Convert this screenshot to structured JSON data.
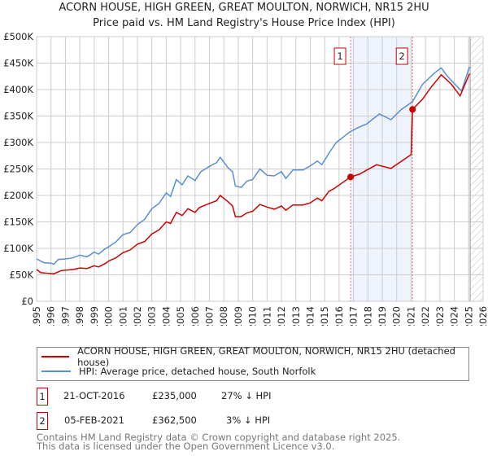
{
  "chart_data": {
    "type": "line",
    "title": "ACORN HOUSE, HIGH GREEN, GREAT MOULTON, NORWICH, NR15 2HU",
    "subtitle": "Price paid vs. HM Land Registry's House Price Index (HPI)",
    "xlabel": "",
    "ylabel": "",
    "xlim": [
      1995,
      2026
    ],
    "ylim": [
      0,
      500000
    ],
    "yticks": [
      {
        "v": 0,
        "label": "£0"
      },
      {
        "v": 50000,
        "label": "£50K"
      },
      {
        "v": 100000,
        "label": "£100K"
      },
      {
        "v": 150000,
        "label": "£150K"
      },
      {
        "v": 200000,
        "label": "£200K"
      },
      {
        "v": 250000,
        "label": "£250K"
      },
      {
        "v": 300000,
        "label": "£300K"
      },
      {
        "v": 350000,
        "label": "£350K"
      },
      {
        "v": 400000,
        "label": "£400K"
      },
      {
        "v": 450000,
        "label": "£450K"
      },
      {
        "v": 500000,
        "label": "£500K"
      }
    ],
    "xticks": [
      "1995",
      "1996",
      "1997",
      "1998",
      "1999",
      "2000",
      "2001",
      "2002",
      "2003",
      "2004",
      "2005",
      "2006",
      "2007",
      "2008",
      "2009",
      "2010",
      "2011",
      "2012",
      "2013",
      "2014",
      "2015",
      "2016",
      "2017",
      "2018",
      "2019",
      "2020",
      "2021",
      "2022",
      "2023",
      "2024",
      "2025",
      "2026"
    ],
    "grid": true,
    "shaded_range": [
      2016.8,
      2021.1
    ],
    "forecast_hatch_from": 2025.1,
    "series": [
      {
        "name": "ACORN HOUSE, HIGH GREEN, GREAT MOULTON, NORWICH, NR15 2HU (detached house)",
        "color": "#cc0000",
        "x": [
          1995,
          1995.3,
          1996.2,
          1996.7,
          1997.5,
          1998,
          1998.5,
          1999,
          1999.3,
          1999.8,
          2000,
          2000.5,
          2001,
          2001.5,
          2002,
          2002.5,
          2003,
          2003.5,
          2004,
          2004.3,
          2004.7,
          2005.1,
          2005.5,
          2006,
          2006.3,
          2007,
          2007.5,
          2007.75,
          2008.3,
          2008.6,
          2008.8,
          2009.2,
          2009.6,
          2010,
          2010.5,
          2011,
          2011.5,
          2012,
          2012.3,
          2012.8,
          2013.5,
          2014,
          2014.5,
          2014.8,
          2015.3,
          2015.6,
          2016.8,
          2017.4,
          2018.6,
          2019.6,
          2021.0,
          2021.1,
          2021.8,
          2022.4,
          2023.1,
          2023.8,
          2024.4,
          2025.05
        ],
        "y": [
          60,
          54,
          52,
          58,
          60,
          63,
          62,
          67,
          65,
          72,
          76,
          82,
          92,
          97,
          108,
          113,
          127,
          135,
          150,
          147,
          168,
          162,
          175,
          168,
          177,
          185,
          190,
          200,
          188,
          180,
          160,
          160,
          167,
          170,
          183,
          178,
          174,
          180,
          172,
          182,
          182,
          186,
          195,
          190,
          208,
          212,
          235,
          240,
          258,
          251,
          277,
          362.5,
          382,
          405,
          428,
          410,
          388,
          430
        ]
      },
      {
        "name": "HPI: Average price, detached house, South Norfolk",
        "color": "#5b8fd4",
        "x": [
          1995,
          1995.5,
          1996,
          1996.2,
          1996.5,
          1997,
          1997.5,
          1998,
          1998.5,
          1999,
          1999.3,
          1999.7,
          2000,
          2000.5,
          2001,
          2001.5,
          2002,
          2002.5,
          2003,
          2003.5,
          2004,
          2004.3,
          2004.7,
          2005.1,
          2005.5,
          2006,
          2006.4,
          2007,
          2007.5,
          2007.75,
          2008.3,
          2008.6,
          2008.8,
          2009.2,
          2009.6,
          2010,
          2010.5,
          2011,
          2011.5,
          2012,
          2012.3,
          2012.8,
          2013.5,
          2014,
          2014.5,
          2014.8,
          2015.3,
          2015.8,
          2016.75,
          2017.3,
          2017.9,
          2018.8,
          2019.6,
          2020.3,
          2021.1,
          2021.8,
          2022.6,
          2023.1,
          2023.5,
          2024.5,
          2025.05
        ],
        "y": [
          80,
          73,
          72,
          70,
          79,
          80,
          82,
          87,
          84,
          93,
          89,
          98,
          103,
          112,
          126,
          130,
          145,
          155,
          175,
          185,
          205,
          198,
          230,
          220,
          237,
          228,
          245,
          255,
          262,
          272,
          252,
          245,
          218,
          215,
          227,
          230,
          250,
          238,
          237,
          245,
          232,
          248,
          248,
          256,
          265,
          258,
          280,
          300,
          320,
          328,
          335,
          354,
          343,
          362,
          377,
          410,
          431,
          441,
          426,
          397,
          443
        ]
      }
    ],
    "sales": [
      {
        "id": "1",
        "x": 2016.8,
        "y": 235
      },
      {
        "id": "2",
        "x": 2021.1,
        "y": 362.5
      }
    ]
  },
  "legend": {
    "property": "ACORN HOUSE, HIGH GREEN, GREAT MOULTON, NORWICH, NR15 2HU (detached house)",
    "hpi": "HPI: Average price, detached house, South Norfolk"
  },
  "transactions": [
    {
      "id": "1",
      "date": "21-OCT-2016",
      "price": "£235,000",
      "hpi": "27% ↓ HPI"
    },
    {
      "id": "2",
      "date": "05-FEB-2021",
      "price": "£362,500",
      "hpi": "3% ↓ HPI"
    }
  ],
  "footer": {
    "line1": "Contains HM Land Registry data © Crown copyright and database right 2025.",
    "line2": "This data is licensed under the Open Government Licence v3.0."
  }
}
